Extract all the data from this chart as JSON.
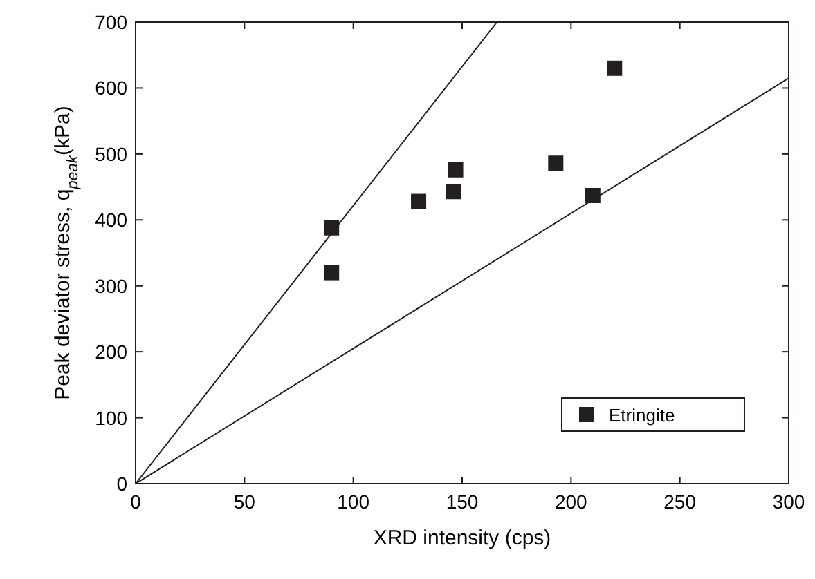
{
  "chart_data": {
    "type": "scatter",
    "xlabel": "XRD intensity (cps)",
    "ylabel": "Peak deviator stress, q$_{peak}$(kPa)",
    "xlim": [
      0,
      300
    ],
    "ylim": [
      0,
      700
    ],
    "xticks": [
      0,
      50,
      100,
      150,
      200,
      250,
      300
    ],
    "yticks": [
      0,
      100,
      200,
      300,
      400,
      500,
      600,
      700
    ],
    "legend": "bottom right",
    "grid": false,
    "series": [
      {
        "name": "Etringite",
        "marker": "square",
        "color": "#231f20",
        "x": [
          90,
          90,
          130,
          146,
          147,
          193,
          210,
          220
        ],
        "values": [
          388,
          320,
          428,
          443,
          476,
          486,
          437,
          630
        ]
      },
      {
        "type": "line",
        "color": "#231f20",
        "x": [
          0,
          166
        ],
        "values": [
          0,
          700
        ]
      },
      {
        "type": "line",
        "color": "#231f20",
        "x": [
          0,
          300
        ],
        "values": [
          0,
          615
        ]
      }
    ]
  }
}
